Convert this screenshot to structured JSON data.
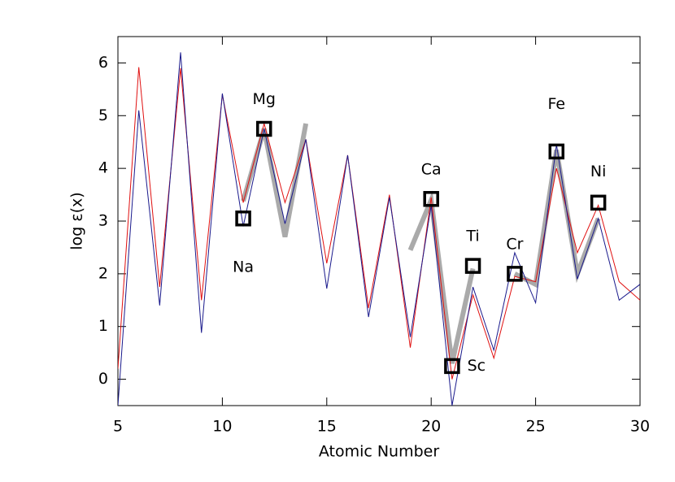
{
  "chart_data": {
    "type": "line",
    "xlabel": "Atomic Number",
    "ylabel": "log ε(x)",
    "x": [
      5,
      6,
      7,
      8,
      9,
      10,
      11,
      12,
      13,
      14,
      15,
      16,
      17,
      18,
      19,
      20,
      21,
      22,
      23,
      24,
      25,
      26,
      27,
      28,
      29,
      30
    ],
    "series": [
      {
        "color": "#e01010",
        "width": 1,
        "values": [
          0.2,
          5.92,
          1.75,
          5.9,
          1.5,
          5.4,
          3.35,
          4.85,
          3.35,
          4.55,
          2.2,
          4.25,
          1.35,
          3.5,
          0.6,
          3.45,
          0.0,
          1.6,
          0.4,
          1.95,
          1.85,
          4.0,
          2.4,
          3.3,
          1.85,
          1.5
        ]
      },
      {
        "color": "#1a1a8c",
        "width": 1,
        "values": [
          -0.5,
          5.1,
          1.4,
          6.2,
          0.88,
          5.42,
          2.9,
          4.75,
          2.95,
          4.55,
          1.72,
          4.25,
          1.18,
          3.45,
          0.8,
          3.3,
          -0.5,
          1.75,
          0.55,
          2.4,
          1.45,
          4.45,
          1.9,
          3.05,
          1.5,
          1.8
        ]
      },
      {
        "color": "#aaaaaa",
        "width": 6,
        "x": [
          11,
          12,
          13,
          14,
          15,
          16,
          17,
          18,
          19,
          20,
          21,
          22,
          23,
          24,
          25,
          26,
          27,
          28
        ],
        "values": [
          3.38,
          4.75,
          2.7,
          4.85,
          null,
          null,
          null,
          null,
          2.45,
          3.4,
          0.3,
          2.1,
          null,
          2.0,
          1.8,
          4.35,
          2.0,
          3.05
        ]
      }
    ],
    "points": {
      "color": "#000000",
      "labels": [
        "Na",
        "Mg",
        "Ca",
        "Sc",
        "Ti",
        "Cr",
        "Fe",
        "Ni"
      ],
      "x": [
        11,
        12,
        20,
        21,
        22,
        24,
        26,
        28
      ],
      "y": [
        3.05,
        4.75,
        3.42,
        0.25,
        2.15,
        2.0,
        4.32,
        3.35
      ]
    },
    "xlim": [
      5,
      30
    ],
    "ylim": [
      -0.5,
      6.5
    ],
    "xticks": [
      5,
      10,
      15,
      20,
      25,
      30
    ],
    "yticks": [
      0,
      1,
      2,
      3,
      4,
      5,
      6
    ]
  }
}
